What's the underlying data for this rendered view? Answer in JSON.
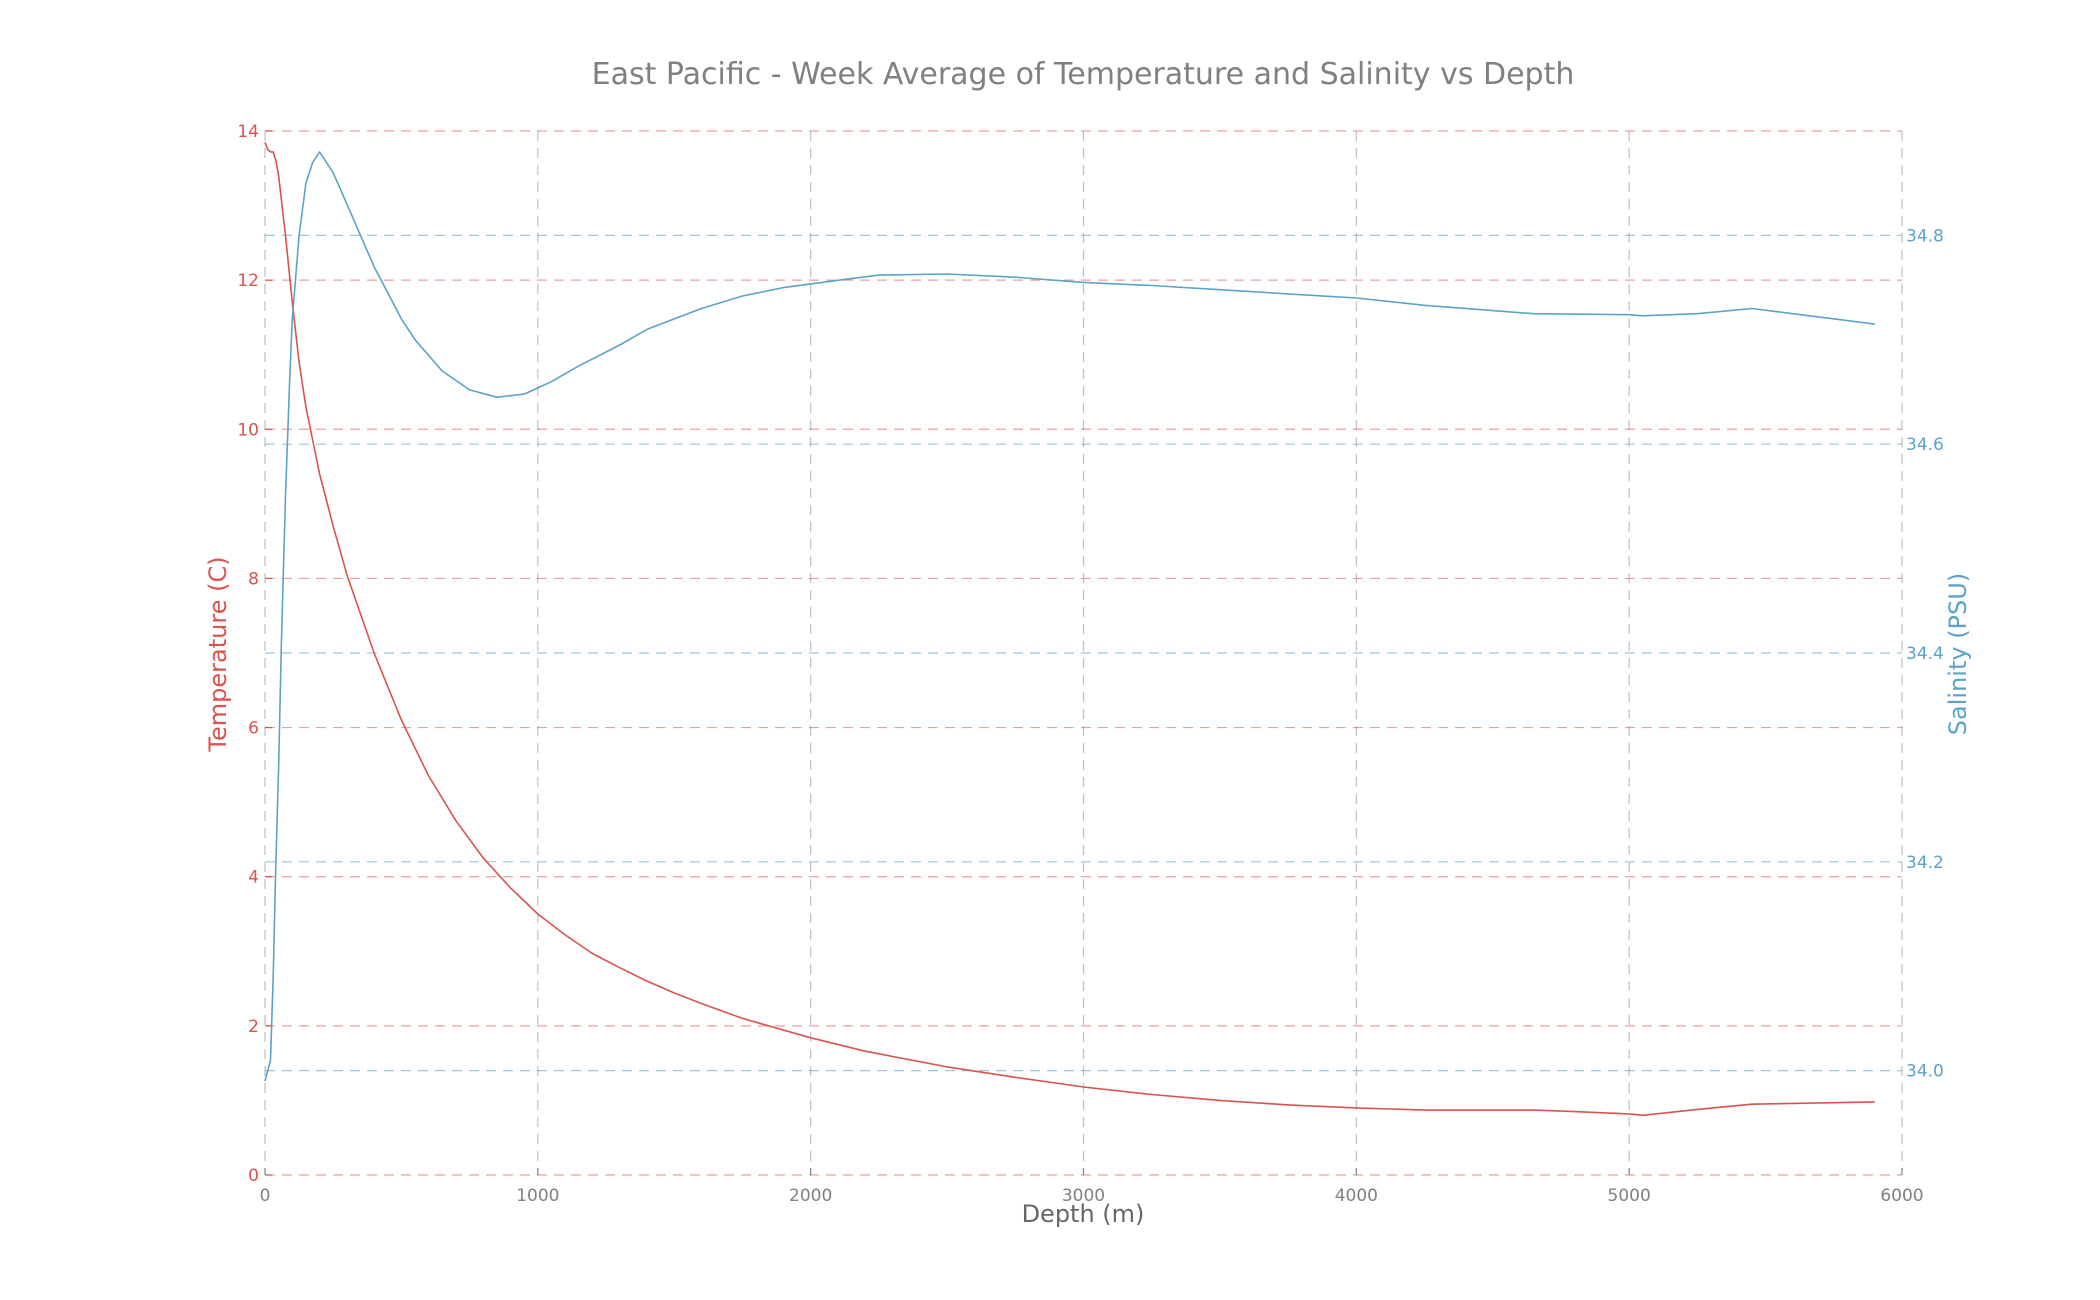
{
  "chart_data": {
    "type": "line",
    "title": "East Pacific - Week Average of Temperature and Salinity vs Depth",
    "xlabel": "Depth (m)",
    "ylabel_left": "Temperature (C)",
    "ylabel_right": "Salinity (PSU)",
    "xlim": [
      0,
      6000
    ],
    "ylim_left": [
      0,
      14
    ],
    "ylim_right": [
      33.9,
      34.9
    ],
    "x_ticks": [
      0,
      1000,
      2000,
      3000,
      4000,
      5000,
      6000
    ],
    "x_tick_labels": [
      "0",
      "1000",
      "2000",
      "3000",
      "4000",
      "5000",
      "6000"
    ],
    "y_left_ticks": [
      0,
      2,
      4,
      6,
      8,
      10,
      12,
      14
    ],
    "y_left_tick_labels": [
      "0",
      "2",
      "4",
      "6",
      "8",
      "10",
      "12",
      "14"
    ],
    "y_right_ticks": [
      34.0,
      34.2,
      34.4,
      34.6,
      34.8
    ],
    "y_right_tick_labels": [
      "34.0",
      "34.2",
      "34.4",
      "34.6",
      "34.8"
    ],
    "grid": true,
    "colors": {
      "temperature": "#d9534f",
      "salinity": "#5ba3c7",
      "title": "#808080",
      "xaxis": "#666666",
      "vgrid": "#b0b0b0"
    },
    "series": [
      {
        "axis": "left",
        "x": [
          0,
          10,
          20,
          30,
          40,
          50,
          75,
          100,
          125,
          150,
          200,
          250,
          300,
          400,
          500,
          600,
          700,
          800,
          900,
          1000,
          1100,
          1200,
          1300,
          1400,
          1500,
          1600,
          1750,
          2000,
          2200,
          2500,
          2750,
          3000,
          3250,
          3500,
          3750,
          4000,
          4250,
          4500,
          4650,
          4800,
          5000,
          5050,
          5250,
          5450,
          5900
        ],
        "values": [
          13.85,
          13.75,
          13.72,
          13.72,
          13.6,
          13.4,
          12.6,
          11.7,
          10.9,
          10.3,
          9.4,
          8.7,
          8.05,
          7.0,
          6.1,
          5.35,
          4.75,
          4.25,
          3.85,
          3.5,
          3.22,
          2.97,
          2.78,
          2.6,
          2.44,
          2.3,
          2.1,
          1.84,
          1.66,
          1.45,
          1.31,
          1.18,
          1.08,
          1.0,
          0.94,
          0.9,
          0.87,
          0.87,
          0.87,
          0.85,
          0.82,
          0.8,
          0.88,
          0.95,
          0.98
        ]
      },
      {
        "axis": "right",
        "x": [
          0,
          10,
          20,
          30,
          40,
          50,
          60,
          75,
          90,
          100,
          125,
          150,
          175,
          200,
          250,
          300,
          350,
          400,
          500,
          550,
          650,
          750,
          850,
          950,
          1050,
          1150,
          1300,
          1400,
          1500,
          1600,
          1750,
          1900,
          2100,
          2250,
          2500,
          2750,
          3000,
          3250,
          3500,
          3750,
          4000,
          4250,
          4500,
          4650,
          5000,
          5050,
          5250,
          5450,
          5900
        ],
        "values": [
          33.99,
          34.0,
          34.01,
          34.09,
          34.2,
          34.29,
          34.41,
          34.55,
          34.66,
          34.72,
          34.8,
          34.85,
          34.87,
          34.88,
          34.86,
          34.83,
          34.8,
          34.77,
          34.72,
          34.7,
          34.67,
          34.652,
          34.645,
          34.648,
          34.66,
          34.675,
          34.695,
          34.71,
          34.72,
          34.73,
          34.742,
          34.75,
          34.757,
          34.762,
          34.763,
          34.76,
          34.755,
          34.752,
          34.748,
          34.744,
          34.74,
          34.733,
          34.728,
          34.725,
          34.724,
          34.723,
          34.725,
          34.73,
          34.715
        ]
      }
    ]
  }
}
